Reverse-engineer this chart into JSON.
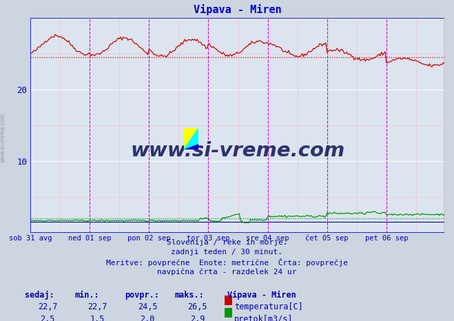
{
  "title": "Vipava - Miren",
  "title_color": "#0000cc",
  "bg_color": "#ccd5e0",
  "plot_bg_color": "#dce4f0",
  "grid_major_color": "#ffffff",
  "grid_minor_color": "#f0c8c8",
  "xlabels": [
    "sob 31 avg",
    "ned 01 sep",
    "pon 02 sep",
    "tor 03 sep",
    "sre 04 sep",
    "čet 05 sep",
    "pet 06 sep"
  ],
  "ylim": [
    0,
    30
  ],
  "yticks": [
    10,
    20
  ],
  "ylabel_color": "#0000aa",
  "temp_color": "#cc0000",
  "flow_color": "#009900",
  "vline_color": "#cc00cc",
  "border_color": "#0000cc",
  "right_border_color": "#cc0000",
  "temp_avg": 24.5,
  "flow_avg": 2.0,
  "temp_min": 22.7,
  "temp_max": 26.5,
  "flow_min": 1.5,
  "flow_max": 2.9,
  "temp_current": 22.7,
  "flow_current": 2.5,
  "info_line1": "Slovenija / reke in morje.",
  "info_line2": "zadnji teden / 30 minut.",
  "info_line3": "Meritve: povprečne  Enote: metrične  Črta: povprečje",
  "info_line4": "navpična črta - razdelek 24 ur",
  "text_color": "#0000aa",
  "n_points": 336,
  "watermark": "www.si-vreme.com",
  "watermark_color": "#1a2060"
}
